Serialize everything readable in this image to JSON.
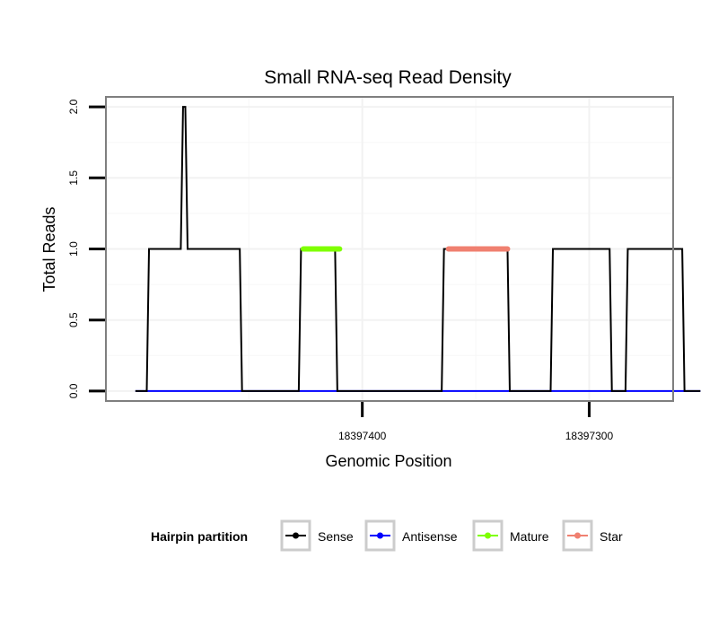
{
  "chart_data": {
    "type": "line",
    "title": "Small RNA-seq Read Density",
    "xlabel": "Genomic Position",
    "ylabel": "Total Reads",
    "x_reversed": true,
    "xlim": [
      18397263,
      18397513
    ],
    "ylim": [
      -0.07,
      2.07
    ],
    "x_ticks": [
      18397400,
      18397300
    ],
    "x_tick_labels": [
      "18397400",
      "18397300"
    ],
    "y_ticks": [
      0.0,
      0.5,
      1.0,
      1.5,
      2.0
    ],
    "y_tick_labels": [
      "0.0",
      "0.5",
      "1.0",
      "1.5",
      "2.0"
    ],
    "grid": true,
    "legend_position": "bottom",
    "legend_title": "Hairpin partition",
    "series": [
      {
        "name": "Sense",
        "color": "#000000",
        "x": [
          18397500,
          18397495,
          18397494,
          18397480,
          18397479,
          18397478,
          18397477,
          18397454,
          18397453,
          18397428,
          18397427,
          18397412,
          18397411,
          18397365,
          18397364,
          18397336,
          18397335,
          18397317,
          18397316,
          18397291,
          18397290,
          18397284,
          18397283,
          18397259,
          18397258,
          18397251
        ],
        "y": [
          0,
          0,
          1,
          1,
          2,
          2,
          1,
          1,
          0,
          0,
          1,
          1,
          0,
          0,
          1,
          1,
          0,
          0,
          1,
          1,
          0,
          0,
          1,
          1,
          0,
          0
        ],
        "stroke_width": 2
      },
      {
        "name": "Antisense",
        "color": "#0000ff",
        "x": [
          18397500,
          18397251
        ],
        "y": [
          0,
          0
        ],
        "stroke_width": 2
      },
      {
        "name": "Mature",
        "color": "#7fff00",
        "x": [
          18397426,
          18397410
        ],
        "y": [
          1,
          1
        ],
        "stroke_width": 6
      },
      {
        "name": "Star",
        "color": "#f08070",
        "x": [
          18397362,
          18397336
        ],
        "y": [
          1,
          1
        ],
        "stroke_width": 6
      }
    ]
  }
}
